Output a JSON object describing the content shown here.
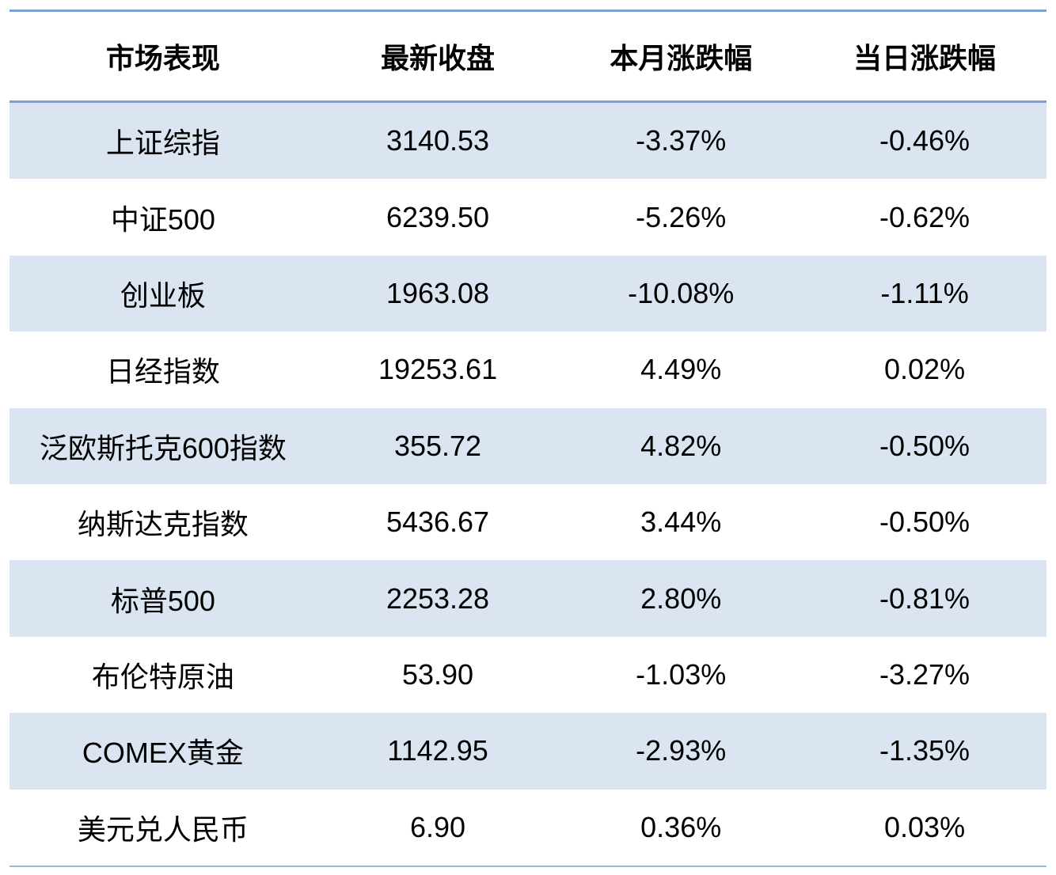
{
  "chart_data": {
    "type": "table",
    "title": "",
    "columns": [
      "市场表现",
      "最新收盘",
      "本月涨跌幅",
      "当日涨跌幅"
    ],
    "rows": [
      [
        "上证综指",
        "3140.53",
        "-3.37%",
        "-0.46%"
      ],
      [
        "中证500",
        "6239.50",
        "-5.26%",
        "-0.62%"
      ],
      [
        "创业板",
        "1963.08",
        "-10.08%",
        "-1.11%"
      ],
      [
        "日经指数",
        "19253.61",
        "4.49%",
        "0.02%"
      ],
      [
        "泛欧斯托克600指数",
        "355.72",
        "4.82%",
        "-0.50%"
      ],
      [
        "纳斯达克指数",
        "5436.67",
        "3.44%",
        "-0.50%"
      ],
      [
        "标普500",
        "2253.28",
        "2.80%",
        "-0.81%"
      ],
      [
        "布伦特原油",
        "53.90",
        "-1.03%",
        "-3.27%"
      ],
      [
        "COMEX黄金",
        "1142.95",
        "-2.93%",
        "-1.35%"
      ],
      [
        "美元兑人民币",
        "6.90",
        "0.36%",
        "0.03%"
      ]
    ],
    "layout": {
      "banding": "alternate-rows-shaded-starting-first-data-row",
      "grid": "horizontal borders only: top, below header, bottom"
    },
    "colors": {
      "band": "#dbe5f1",
      "border_strong": "#7ba0cf",
      "border_light": "#9db9da",
      "text": "#000000",
      "background": "#ffffff"
    }
  }
}
